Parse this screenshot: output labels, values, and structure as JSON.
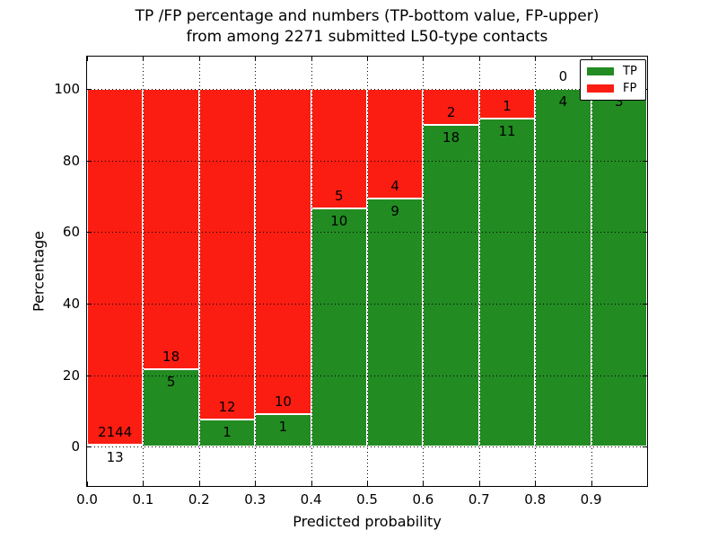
{
  "chart_data": {
    "type": "bar",
    "variant": "100-percent-stacked-histogram",
    "title": {
      "line1": "TP /FP percentage and numbers (TP-bottom value, FP-upper)",
      "line2": "from among 2271 submitted L50-type contacts"
    },
    "xlabel": "Predicted probability",
    "ylabel": "Percentage",
    "categories": [
      "0.0-0.1",
      "0.1-0.2",
      "0.2-0.3",
      "0.3-0.4",
      "0.4-0.5",
      "0.5-0.6",
      "0.6-0.7",
      "0.7-0.8",
      "0.8-0.9",
      "0.9-1.0"
    ],
    "series": [
      {
        "name": "TP",
        "color": "#228b22",
        "counts": [
          13,
          5,
          1,
          1,
          10,
          9,
          18,
          11,
          4,
          3
        ]
      },
      {
        "name": "FP",
        "color": "#fb1d12",
        "counts": [
          2144,
          18,
          12,
          10,
          5,
          4,
          2,
          1,
          0,
          0
        ]
      }
    ],
    "label_convention": "TP count printed below segment boundary, FP count printed above",
    "total_submitted": 2271,
    "x_tick_labels": [
      "0.0",
      "0.1",
      "0.2",
      "0.3",
      "0.4",
      "0.5",
      "0.6",
      "0.7",
      "0.8",
      "0.9"
    ],
    "y_tick_values": [
      0,
      20,
      40,
      60,
      80,
      100
    ],
    "xlim": [
      0.0,
      1.0
    ],
    "ylim": [
      -11,
      109
    ],
    "grid": "dotted both axes",
    "legend_position": "upper right",
    "edge_color": "#ffffff",
    "grid_color": "#000000"
  }
}
